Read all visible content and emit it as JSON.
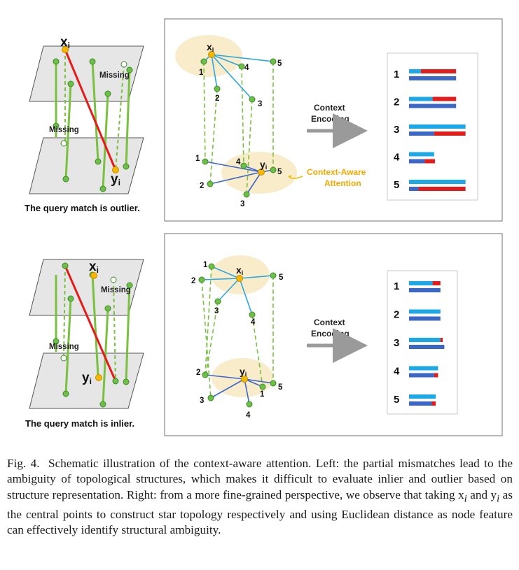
{
  "left_top": {
    "xi": "x",
    "yi": "y",
    "sub": "i",
    "missing_1": "Missing",
    "missing_2": "Missing",
    "caption": "The query match is outlier."
  },
  "left_bottom": {
    "xi": "x",
    "yi": "y",
    "sub": "i",
    "missing_1": "Missing",
    "missing_2": "Missing",
    "caption": "The query match is inlier."
  },
  "right_top": {
    "xi": "x",
    "yi": "y",
    "sub": "i",
    "nodes_top": [
      "1",
      "2",
      "3",
      "4",
      "5"
    ],
    "nodes_bottom": [
      "1",
      "2",
      "3",
      "4",
      "5"
    ],
    "arrow_label_1": "Context",
    "arrow_label_2": "Encoding",
    "attention_1": "Context-Aware",
    "attention_2": "Attention",
    "rows": [
      {
        "label": "1",
        "top_cyan": 0.15,
        "top_red": 0.45,
        "bottom": 0.6
      },
      {
        "label": "2",
        "top_cyan": 0.3,
        "top_red": 0.3,
        "bottom": 0.6
      },
      {
        "label": "3",
        "top_cyan": 0.72,
        "top_red": 0.0,
        "bottom_blue": 0.32,
        "bottom_red": 0.4
      },
      {
        "label": "4",
        "top_cyan": 0.32,
        "top_red": 0.0,
        "bottom_blue": 0.2,
        "bottom_red": 0.13
      },
      {
        "label": "5",
        "top_cyan": 0.72,
        "top_red": 0.0,
        "bottom_blue": 0.12,
        "bottom_red": 0.6
      }
    ]
  },
  "right_bottom": {
    "xi": "x",
    "yi": "y",
    "sub": "i",
    "nodes_top": [
      "1",
      "2",
      "3",
      "4",
      "5"
    ],
    "nodes_bottom": [
      "1",
      "2",
      "3",
      "4",
      "5"
    ],
    "arrow_label_1": "Context",
    "arrow_label_2": "Encoding",
    "rows": [
      {
        "label": "1",
        "top_cyan": 0.3,
        "top_red": 0.1,
        "bottom": 0.4
      },
      {
        "label": "2",
        "top_cyan": 0.4,
        "top_red": 0.0,
        "bottom": 0.4
      },
      {
        "label": "3",
        "top_cyan": 0.4,
        "top_red": 0.03,
        "bottom": 0.45
      },
      {
        "label": "4",
        "top_cyan": 0.37,
        "top_red": 0.0,
        "bottom_blue": 0.32,
        "bottom_red": 0.05
      },
      {
        "label": "5",
        "top_cyan": 0.34,
        "top_red": 0.0,
        "bottom_blue": 0.29,
        "bottom_red": 0.05
      }
    ]
  },
  "colors": {
    "green": "#7ac142",
    "green_node": "#6cc04a",
    "orange": "#f5b800",
    "red": "#e31b1b",
    "blue_line": "#2aa7e0",
    "blue_dark": "#3b67c8",
    "cyan": "#1ba8e8",
    "highlight": "#f9eccb",
    "plane": "#e6e6e6"
  },
  "caption": {
    "label": "Fig. 4.",
    "text": "Schematic illustration of the context-aware attention. Left: the partial mismatches lead to the ambiguity of topological structures, which makes it difficult to evaluate inlier and outlier based on structure representation. Right: from a more fine-grained perspective, we observe that taking x",
    "xi_sub": "i",
    "and": " and y",
    "yi_sub": "i",
    "text_end": " as the central points to construct star topology respectively and using Euclidean distance as node feature can effectively identify structural ambiguity."
  }
}
